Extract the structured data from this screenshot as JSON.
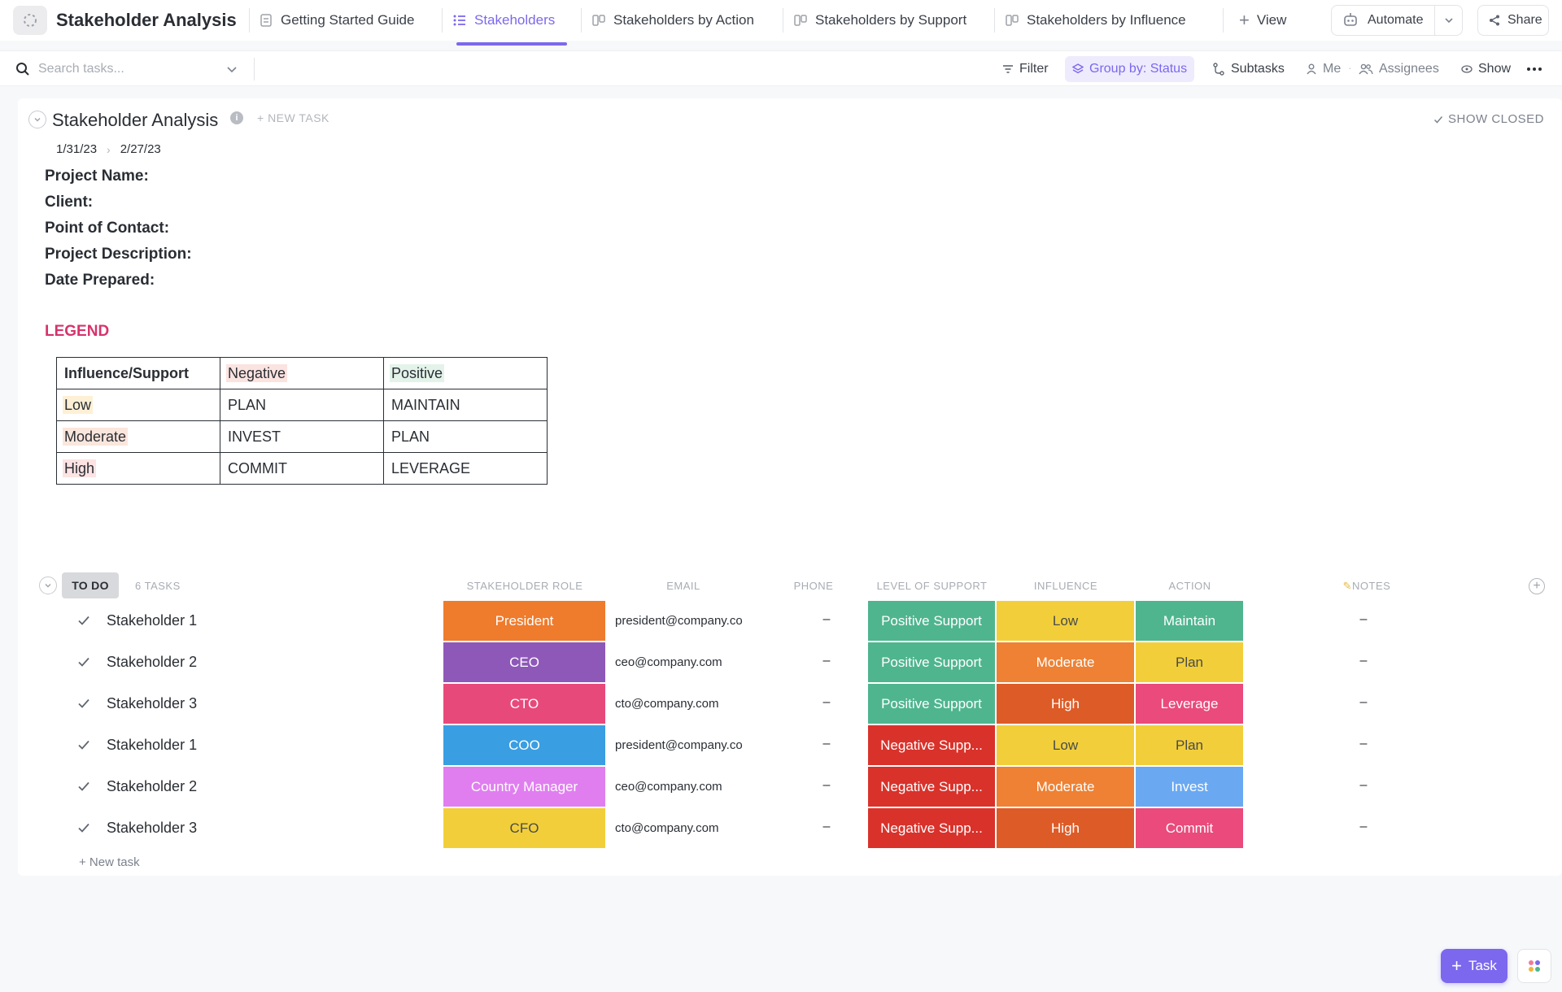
{
  "app": {
    "title": "Stakeholder Analysis"
  },
  "tabs": [
    {
      "label": "Getting Started Guide"
    },
    {
      "label": "Stakeholders"
    },
    {
      "label": "Stakeholders by Action"
    },
    {
      "label": "Stakeholders by Support"
    },
    {
      "label": "Stakeholders by Influence"
    }
  ],
  "topbar": {
    "add_view_label": "View",
    "automate_label": "Automate",
    "share_label": "Share"
  },
  "toolbar": {
    "search_placeholder": "Search tasks...",
    "filter_label": "Filter",
    "group_by_label": "Group by: Status",
    "subtasks_label": "Subtasks",
    "me_label": "Me",
    "assignees_label": "Assignees",
    "show_label": "Show"
  },
  "list": {
    "title": "Stakeholder Analysis",
    "new_task_label": "+ NEW TASK",
    "show_closed_label": "SHOW CLOSED",
    "start_date": "1/31/23",
    "due_date": "2/27/23",
    "fields": [
      "Project Name:",
      "Client:",
      "Point of Contact:",
      "Project Description:",
      "Date Prepared:"
    ],
    "legend_title": "LEGEND",
    "legend_rows": [
      [
        "Influence/Support",
        "Negative",
        "Positive"
      ],
      [
        "Low",
        "PLAN",
        "MAINTAIN"
      ],
      [
        "Moderate",
        "INVEST",
        "PLAN"
      ],
      [
        "High",
        "COMMIT",
        "LEVERAGE"
      ]
    ]
  },
  "group": {
    "status": "TO DO",
    "count_label": "6 TASKS",
    "columns": {
      "role": "STAKEHOLDER ROLE",
      "email": "EMAIL",
      "phone": "PHONE",
      "support": "LEVEL OF SUPPORT",
      "influence": "INFLUENCE",
      "action": "ACTION",
      "notes": "NOTES"
    },
    "new_task_label": "+ New task"
  },
  "rows": [
    {
      "name": "Stakeholder 1",
      "role": "President",
      "role_color": "#ef7b2c",
      "email": "president@company.co",
      "phone": "–",
      "support": "Positive Support",
      "support_color": "#4fb58f",
      "influence": "Low",
      "influence_color": "#f2cf3a",
      "influence_text": "#4a4a4a",
      "action": "Maintain",
      "action_color": "#4fb58f",
      "action_text": "#ffffff",
      "notes": "–"
    },
    {
      "name": "Stakeholder 2",
      "role": "CEO",
      "role_color": "#8e58b8",
      "email": "ceo@company.com",
      "phone": "–",
      "support": "Positive Support",
      "support_color": "#4fb58f",
      "influence": "Moderate",
      "influence_color": "#ee8133",
      "influence_text": "#ffffff",
      "action": "Plan",
      "action_color": "#f2cf3a",
      "action_text": "#4a4a4a",
      "notes": "–"
    },
    {
      "name": "Stakeholder 3",
      "role": "CTO",
      "role_color": "#e8497b",
      "email": "cto@company.com",
      "phone": "–",
      "support": "Positive Support",
      "support_color": "#4fb58f",
      "influence": "High",
      "influence_color": "#dd5b27",
      "influence_text": "#ffffff",
      "action": "Leverage",
      "action_color": "#ea4a7c",
      "action_text": "#ffffff",
      "notes": "–"
    },
    {
      "name": "Stakeholder 1",
      "role": "COO",
      "role_color": "#3a9ee2",
      "email": "president@company.co",
      "phone": "–",
      "support": "Negative Supp...",
      "support_color": "#d9322b",
      "influence": "Low",
      "influence_color": "#f2cf3a",
      "influence_text": "#4a4a4a",
      "action": "Plan",
      "action_color": "#f2cf3a",
      "action_text": "#4a4a4a",
      "notes": "–"
    },
    {
      "name": "Stakeholder 2",
      "role": "Country Manager",
      "role_color": "#e07ef0",
      "email": "ceo@company.com",
      "phone": "–",
      "support": "Negative Supp...",
      "support_color": "#d9322b",
      "influence": "Moderate",
      "influence_color": "#ee8133",
      "influence_text": "#ffffff",
      "action": "Invest",
      "action_color": "#6aa9f2",
      "action_text": "#ffffff",
      "notes": "–"
    },
    {
      "name": "Stakeholder 3",
      "role": "CFO",
      "role_color": "#f2cf3a",
      "email": "cto@company.com",
      "phone": "–",
      "support": "Negative Supp...",
      "support_color": "#d9322b",
      "influence": "High",
      "influence_color": "#dd5b27",
      "influence_text": "#ffffff",
      "action": "Commit",
      "action_color": "#ea4a7c",
      "action_text": "#ffffff",
      "notes": "–"
    }
  ],
  "fab": {
    "task_label": "Task"
  },
  "colors": {
    "accent": "#7b68ee",
    "legend_title": "#d6336c"
  }
}
